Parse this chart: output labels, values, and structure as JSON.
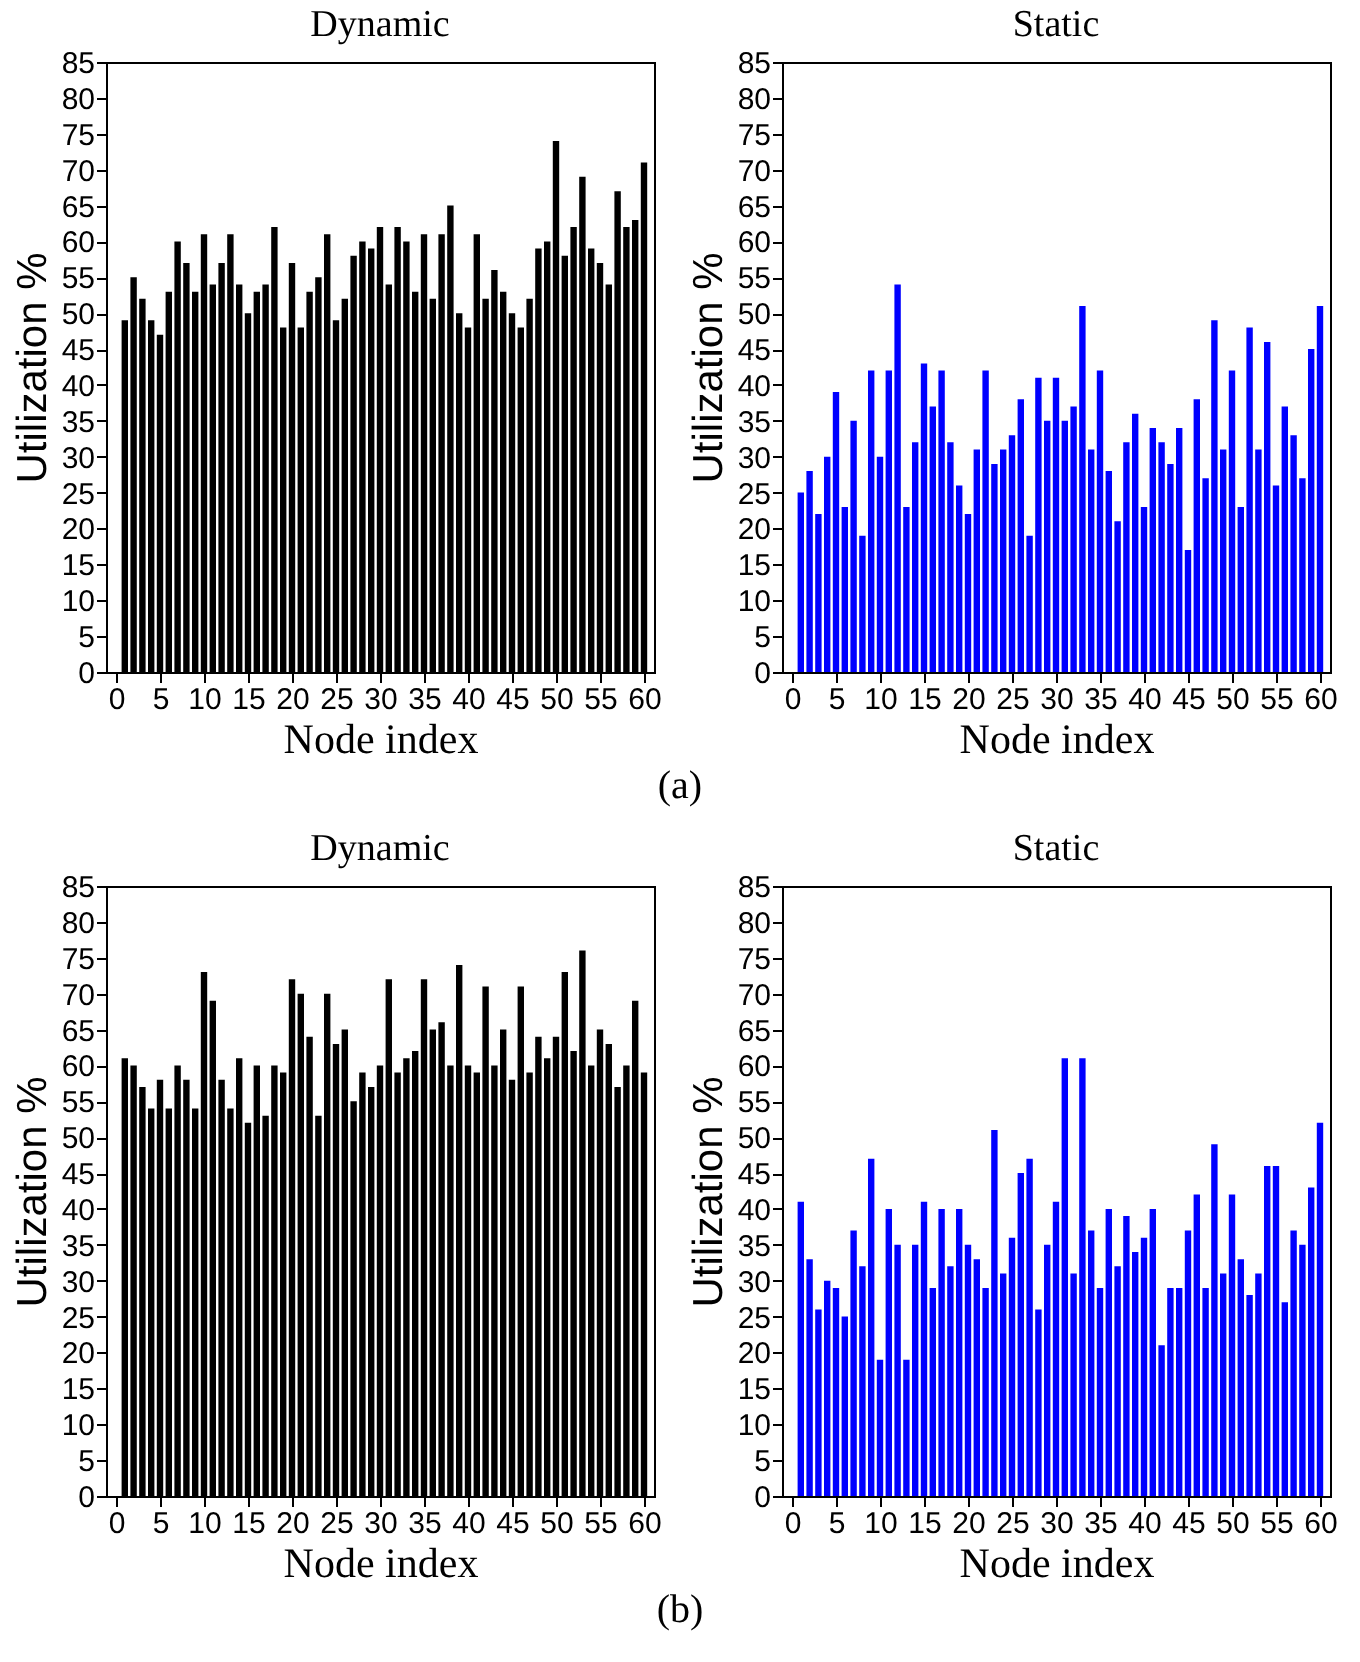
{
  "chart_data": [
    {
      "type": "bar",
      "title": "Dynamic",
      "xlabel": "Node index",
      "ylabel": "Utilization %",
      "x": [
        1,
        2,
        3,
        4,
        5,
        6,
        7,
        8,
        9,
        10,
        11,
        12,
        13,
        14,
        15,
        16,
        17,
        18,
        19,
        20,
        21,
        22,
        23,
        24,
        25,
        26,
        27,
        28,
        29,
        30,
        31,
        32,
        33,
        34,
        35,
        36,
        37,
        38,
        39,
        40,
        41,
        42,
        43,
        44,
        45,
        46,
        47,
        48,
        49,
        50,
        51,
        52,
        53,
        54,
        55,
        56,
        57,
        58,
        59,
        60
      ],
      "color": "#000000",
      "values": [
        49,
        55,
        52,
        49,
        47,
        53,
        60,
        57,
        53,
        61,
        54,
        57,
        61,
        54,
        50,
        53,
        54,
        62,
        48,
        57,
        48,
        53,
        55,
        61,
        49,
        52,
        58,
        60,
        59,
        62,
        54,
        62,
        60,
        53,
        61,
        52,
        61,
        65,
        50,
        48,
        61,
        52,
        56,
        53,
        50,
        48,
        52,
        59,
        60,
        74,
        58,
        62,
        69,
        59,
        57,
        54,
        67,
        62,
        63,
        71
      ],
      "xlim": [
        0,
        60
      ],
      "xticks": [
        0,
        5,
        10,
        15,
        20,
        25,
        30,
        35,
        40,
        45,
        50,
        55,
        60
      ],
      "ylim": [
        0,
        85
      ],
      "yticks": [
        0,
        5,
        10,
        15,
        20,
        25,
        30,
        35,
        40,
        45,
        50,
        55,
        60,
        65,
        70,
        75,
        80,
        85
      ],
      "annotations": [
        "(a)"
      ]
    },
    {
      "type": "bar",
      "title": "Static",
      "xlabel": "Node index",
      "ylabel": "Utilization %",
      "x": [
        1,
        2,
        3,
        4,
        5,
        6,
        7,
        8,
        9,
        10,
        11,
        12,
        13,
        14,
        15,
        16,
        17,
        18,
        19,
        20,
        21,
        22,
        23,
        24,
        25,
        26,
        27,
        28,
        29,
        30,
        31,
        32,
        33,
        34,
        35,
        36,
        37,
        38,
        39,
        40,
        41,
        42,
        43,
        44,
        45,
        46,
        47,
        48,
        49,
        50,
        51,
        52,
        53,
        54,
        55,
        56,
        57,
        58,
        59,
        60
      ],
      "color": "#0000ff",
      "values": [
        25,
        28,
        22,
        30,
        39,
        23,
        35,
        19,
        42,
        30,
        42,
        54,
        23,
        32,
        43,
        37,
        42,
        32,
        26,
        22,
        31,
        42,
        29,
        31,
        33,
        38,
        19,
        41,
        35,
        41,
        35,
        37,
        51,
        31,
        42,
        28,
        21,
        32,
        36,
        23,
        34,
        32,
        29,
        34,
        17,
        38,
        27,
        49,
        31,
        42,
        23,
        48,
        31,
        46,
        26,
        37,
        33,
        27,
        45,
        51
      ],
      "xlim": [
        0,
        60
      ],
      "xticks": [
        0,
        5,
        10,
        15,
        20,
        25,
        30,
        35,
        40,
        45,
        50,
        55,
        60
      ],
      "ylim": [
        0,
        85
      ],
      "yticks": [
        0,
        5,
        10,
        15,
        20,
        25,
        30,
        35,
        40,
        45,
        50,
        55,
        60,
        65,
        70,
        75,
        80,
        85
      ]
    },
    {
      "type": "bar",
      "title": "Dynamic",
      "xlabel": "Node index",
      "ylabel": "Utilization %",
      "x": [
        1,
        2,
        3,
        4,
        5,
        6,
        7,
        8,
        9,
        10,
        11,
        12,
        13,
        14,
        15,
        16,
        17,
        18,
        19,
        20,
        21,
        22,
        23,
        24,
        25,
        26,
        27,
        28,
        29,
        30,
        31,
        32,
        33,
        34,
        35,
        36,
        37,
        38,
        39,
        40,
        41,
        42,
        43,
        44,
        45,
        46,
        47,
        48,
        49,
        50,
        51,
        52,
        53,
        54,
        55,
        56,
        57,
        58,
        59,
        60
      ],
      "color": "#000000",
      "values": [
        61,
        60,
        57,
        54,
        58,
        54,
        60,
        58,
        54,
        73,
        69,
        58,
        54,
        61,
        52,
        60,
        53,
        60,
        59,
        72,
        70,
        64,
        53,
        70,
        63,
        65,
        55,
        59,
        57,
        60,
        72,
        59,
        61,
        62,
        72,
        65,
        66,
        60,
        74,
        60,
        59,
        71,
        60,
        65,
        58,
        71,
        59,
        64,
        61,
        64,
        73,
        62,
        76,
        60,
        65,
        63,
        57,
        60,
        69,
        59
      ],
      "xlim": [
        0,
        60
      ],
      "xticks": [
        0,
        5,
        10,
        15,
        20,
        25,
        30,
        35,
        40,
        45,
        50,
        55,
        60
      ],
      "ylim": [
        0,
        85
      ],
      "yticks": [
        0,
        5,
        10,
        15,
        20,
        25,
        30,
        35,
        40,
        45,
        50,
        55,
        60,
        65,
        70,
        75,
        80,
        85
      ],
      "annotations": [
        "(b)"
      ]
    },
    {
      "type": "bar",
      "title": "Static",
      "xlabel": "Node index",
      "ylabel": "Utilization %",
      "x": [
        1,
        2,
        3,
        4,
        5,
        6,
        7,
        8,
        9,
        10,
        11,
        12,
        13,
        14,
        15,
        16,
        17,
        18,
        19,
        20,
        21,
        22,
        23,
        24,
        25,
        26,
        27,
        28,
        29,
        30,
        31,
        32,
        33,
        34,
        35,
        36,
        37,
        38,
        39,
        40,
        41,
        42,
        43,
        44,
        45,
        46,
        47,
        48,
        49,
        50,
        51,
        52,
        53,
        54,
        55,
        56,
        57,
        58,
        59,
        60
      ],
      "color": "#0000ff",
      "values": [
        41,
        33,
        26,
        30,
        29,
        25,
        37,
        32,
        47,
        19,
        40,
        35,
        19,
        35,
        41,
        29,
        40,
        32,
        40,
        35,
        33,
        29,
        51,
        31,
        36,
        45,
        47,
        26,
        35,
        41,
        61,
        31,
        61,
        37,
        29,
        40,
        32,
        39,
        34,
        36,
        40,
        21,
        29,
        29,
        37,
        42,
        29,
        49,
        31,
        42,
        33,
        28,
        31,
        46,
        46,
        27,
        37,
        35,
        43,
        52
      ],
      "xlim": [
        0,
        60
      ],
      "xticks": [
        0,
        5,
        10,
        15,
        20,
        25,
        30,
        35,
        40,
        45,
        50,
        55,
        60
      ],
      "ylim": [
        0,
        85
      ],
      "yticks": [
        0,
        5,
        10,
        15,
        20,
        25,
        30,
        35,
        40,
        45,
        50,
        55,
        60,
        65,
        70,
        75,
        80,
        85
      ]
    }
  ]
}
